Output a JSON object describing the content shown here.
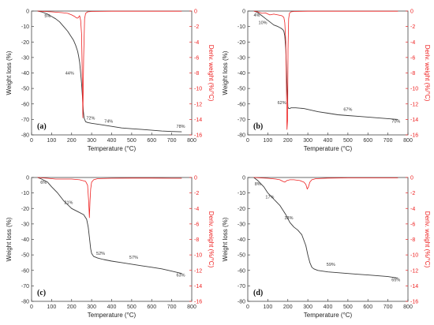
{
  "colors": {
    "weight": "#3a3a3a",
    "deriv": "#ee2222",
    "frame": "#444444"
  },
  "chart_data": [
    {
      "type": "line",
      "panel_label": "(a)",
      "xlabel": "Temperature (°C)",
      "ylabel_left": "Weight loss (%)",
      "ylabel_right": "Deriv. weight (%/°C)",
      "xlim": [
        0,
        800
      ],
      "xticks": [
        0,
        100,
        200,
        300,
        400,
        500,
        600,
        700,
        800
      ],
      "ylim_left": [
        -80,
        0
      ],
      "yticks_left": [
        0,
        -10,
        -20,
        -30,
        -40,
        -50,
        -60,
        -70,
        -80
      ],
      "ylim_right": [
        -16,
        0
      ],
      "yticks_right": [
        0,
        -2,
        -4,
        -6,
        -8,
        -10,
        -12,
        -14,
        -16
      ],
      "grid": false,
      "series": [
        {
          "axis": "left",
          "x": [
            30,
            50,
            80,
            100,
            120,
            140,
            160,
            180,
            200,
            210,
            220,
            230,
            235,
            240,
            245,
            250,
            255,
            258,
            262,
            270,
            280,
            300,
            350,
            400,
            450,
            500,
            550,
            600,
            650,
            700,
            750
          ],
          "y": [
            0,
            -0.5,
            -2,
            -3.5,
            -5,
            -7,
            -10,
            -13,
            -17,
            -19,
            -22,
            -26,
            -29,
            -33,
            -40,
            -47,
            -57,
            -64,
            -69,
            -71.5,
            -72,
            -72.5,
            -73.5,
            -74.5,
            -75.5,
            -76,
            -76.5,
            -77,
            -77.5,
            -77.8,
            -78
          ]
        },
        {
          "axis": "right",
          "x": [
            30,
            60,
            100,
            150,
            180,
            200,
            215,
            225,
            232,
            240,
            245,
            250,
            253,
            256,
            260,
            265,
            270,
            280,
            300,
            400,
            500,
            600,
            700,
            750
          ],
          "y": [
            0,
            -0.05,
            -0.1,
            -0.2,
            -0.3,
            -0.5,
            -0.7,
            -0.9,
            -0.9,
            -0.6,
            -1.2,
            -3,
            -8,
            -13.8,
            -6,
            -1,
            -0.3,
            -0.1,
            -0.05,
            -0.02,
            -0.02,
            -0.02,
            -0.02,
            -0.02
          ]
        }
      ],
      "annotations": [
        {
          "text": "5%",
          "x": 80,
          "y": -4
        },
        {
          "text": "44%",
          "x": 190,
          "y": -41
        },
        {
          "text": "72%",
          "x": 295,
          "y": -70
        },
        {
          "text": "74%",
          "x": 385,
          "y": -72
        },
        {
          "text": "78%",
          "x": 745,
          "y": -75.5
        }
      ]
    },
    {
      "type": "line",
      "panel_label": "(b)",
      "xlabel": "Temperature (°C)",
      "ylabel_left": "Weight loss (%)",
      "ylabel_right": "Deriv. weight (%/°C)",
      "xlim": [
        0,
        800
      ],
      "xticks": [
        0,
        100,
        200,
        300,
        400,
        500,
        600,
        700,
        800
      ],
      "ylim_left": [
        -80,
        0
      ],
      "yticks_left": [
        0,
        -10,
        -20,
        -30,
        -40,
        -50,
        -60,
        -70,
        -80
      ],
      "ylim_right": [
        -16,
        0
      ],
      "yticks_right": [
        0,
        -2,
        -4,
        -6,
        -8,
        -10,
        -12,
        -14,
        -16
      ],
      "grid": false,
      "series": [
        {
          "axis": "left",
          "x": [
            30,
            50,
            70,
            90,
            110,
            130,
            150,
            165,
            175,
            180,
            185,
            190,
            195,
            200,
            205,
            210,
            215,
            220,
            240,
            280,
            350,
            400,
            450,
            500,
            550,
            600,
            650,
            700,
            750
          ],
          "y": [
            0,
            -1,
            -3,
            -5,
            -7,
            -9,
            -10,
            -11,
            -12,
            -13,
            -16,
            -25,
            -45,
            -62,
            -63,
            -63,
            -62.5,
            -62.5,
            -62.5,
            -63,
            -65,
            -66,
            -67,
            -67.5,
            -68,
            -68.5,
            -69,
            -69.5,
            -70
          ]
        },
        {
          "axis": "right",
          "x": [
            30,
            50,
            70,
            90,
            110,
            130,
            150,
            170,
            180,
            185,
            190,
            193,
            196,
            199,
            201,
            204,
            208,
            215,
            230,
            300,
            400,
            500,
            600,
            700,
            750
          ],
          "y": [
            0,
            -0.1,
            -0.3,
            -0.25,
            -0.5,
            -0.4,
            -0.5,
            -0.6,
            -0.8,
            -1.5,
            -4,
            -10,
            -15.3,
            -14,
            -5,
            -1,
            -0.3,
            -0.1,
            -0.05,
            -0.02,
            -0.02,
            -0.02,
            -0.02,
            -0.02,
            -0.02
          ]
        }
      ],
      "annotations": [
        {
          "text": "4%",
          "x": 45,
          "y": -3.5
        },
        {
          "text": "10%",
          "x": 75,
          "y": -8.5
        },
        {
          "text": "62%",
          "x": 170,
          "y": -60
        },
        {
          "text": "67%",
          "x": 500,
          "y": -64.5
        },
        {
          "text": "70%",
          "x": 740,
          "y": -72
        }
      ]
    },
    {
      "type": "line",
      "panel_label": "(c)",
      "xlabel": "Temperature (°C)",
      "ylabel_left": "Weight loss (%)",
      "ylabel_right": "Deriv. weight (%/°C)",
      "xlim": [
        0,
        800
      ],
      "xticks": [
        0,
        100,
        200,
        300,
        400,
        500,
        600,
        700,
        800
      ],
      "ylim_left": [
        -80,
        0
      ],
      "yticks_left": [
        0,
        -10,
        -20,
        -30,
        -40,
        -50,
        -60,
        -70,
        -80
      ],
      "ylim_right": [
        -16,
        0
      ],
      "yticks_right": [
        0,
        -2,
        -4,
        -6,
        -8,
        -10,
        -12,
        -14,
        -16
      ],
      "grid": false,
      "series": [
        {
          "axis": "left",
          "x": [
            30,
            50,
            80,
            100,
            130,
            160,
            200,
            230,
            260,
            275,
            283,
            290,
            295,
            300,
            310,
            330,
            360,
            400,
            450,
            500,
            550,
            600,
            650,
            700,
            750
          ],
          "y": [
            0,
            -1,
            -3,
            -6,
            -10,
            -15,
            -20,
            -22,
            -24,
            -27,
            -32,
            -40,
            -46,
            -49,
            -51,
            -52,
            -53,
            -54,
            -55,
            -56,
            -57,
            -58,
            -59,
            -60.5,
            -62
          ]
        },
        {
          "axis": "right",
          "x": [
            30,
            50,
            80,
            120,
            160,
            200,
            240,
            270,
            280,
            285,
            289,
            292,
            295,
            300,
            310,
            330,
            400,
            500,
            600,
            700,
            750
          ],
          "y": [
            0,
            -0.05,
            -0.1,
            -0.2,
            -0.2,
            -0.2,
            -0.3,
            -0.5,
            -1,
            -3,
            -5.2,
            -3,
            -1.5,
            -0.6,
            -0.3,
            -0.15,
            -0.1,
            -0.08,
            -0.08,
            -0.1,
            -0.1
          ]
        }
      ],
      "annotations": [
        {
          "text": "6%",
          "x": 60,
          "y": -4
        },
        {
          "text": "21%",
          "x": 185,
          "y": -17
        },
        {
          "text": "52%",
          "x": 345,
          "y": -50
        },
        {
          "text": "57%",
          "x": 510,
          "y": -52.5
        },
        {
          "text": "63%",
          "x": 745,
          "y": -64
        }
      ]
    },
    {
      "type": "line",
      "panel_label": "(d)",
      "xlabel": "Temperature (°C)",
      "ylabel_left": "Weight loss (%)",
      "ylabel_right": "Deriv. weight (%/°C)",
      "xlim": [
        0,
        800
      ],
      "xticks": [
        0,
        100,
        200,
        300,
        400,
        500,
        600,
        700,
        800
      ],
      "ylim_left": [
        -80,
        0
      ],
      "yticks_left": [
        0,
        -10,
        -20,
        -30,
        -40,
        -50,
        -60,
        -70,
        -80
      ],
      "ylim_right": [
        -16,
        0
      ],
      "yticks_right": [
        0,
        -2,
        -4,
        -6,
        -8,
        -10,
        -12,
        -14,
        -16
      ],
      "grid": false,
      "series": [
        {
          "axis": "left",
          "x": [
            30,
            50,
            80,
            100,
            130,
            160,
            190,
            210,
            230,
            250,
            270,
            290,
            300,
            310,
            320,
            330,
            350,
            400,
            450,
            500,
            550,
            600,
            650,
            700,
            750
          ],
          "y": [
            0,
            -2,
            -6,
            -10,
            -14,
            -18,
            -24,
            -29,
            -32,
            -34,
            -37,
            -44,
            -50,
            -55,
            -58,
            -59,
            -60,
            -61,
            -61.5,
            -62,
            -62.5,
            -63,
            -63.5,
            -64,
            -65
          ]
        },
        {
          "axis": "right",
          "x": [
            30,
            60,
            100,
            140,
            160,
            175,
            185,
            195,
            210,
            230,
            260,
            280,
            290,
            297,
            303,
            310,
            320,
            340,
            400,
            500,
            600,
            700,
            750
          ],
          "y": [
            0,
            -0.05,
            -0.1,
            -0.2,
            -0.3,
            -0.5,
            -0.6,
            -0.4,
            -0.3,
            -0.3,
            -0.4,
            -0.6,
            -0.9,
            -1.5,
            -1.2,
            -0.6,
            -0.3,
            -0.15,
            -0.08,
            -0.05,
            -0.05,
            -0.05,
            -0.05
          ]
        }
      ],
      "annotations": [
        {
          "text": "8%",
          "x": 50,
          "y": -5
        },
        {
          "text": "17%",
          "x": 110,
          "y": -13.5
        },
        {
          "text": "33%",
          "x": 205,
          "y": -27
        },
        {
          "text": "59%",
          "x": 415,
          "y": -57
        },
        {
          "text": "65%",
          "x": 740,
          "y": -67
        }
      ]
    }
  ]
}
